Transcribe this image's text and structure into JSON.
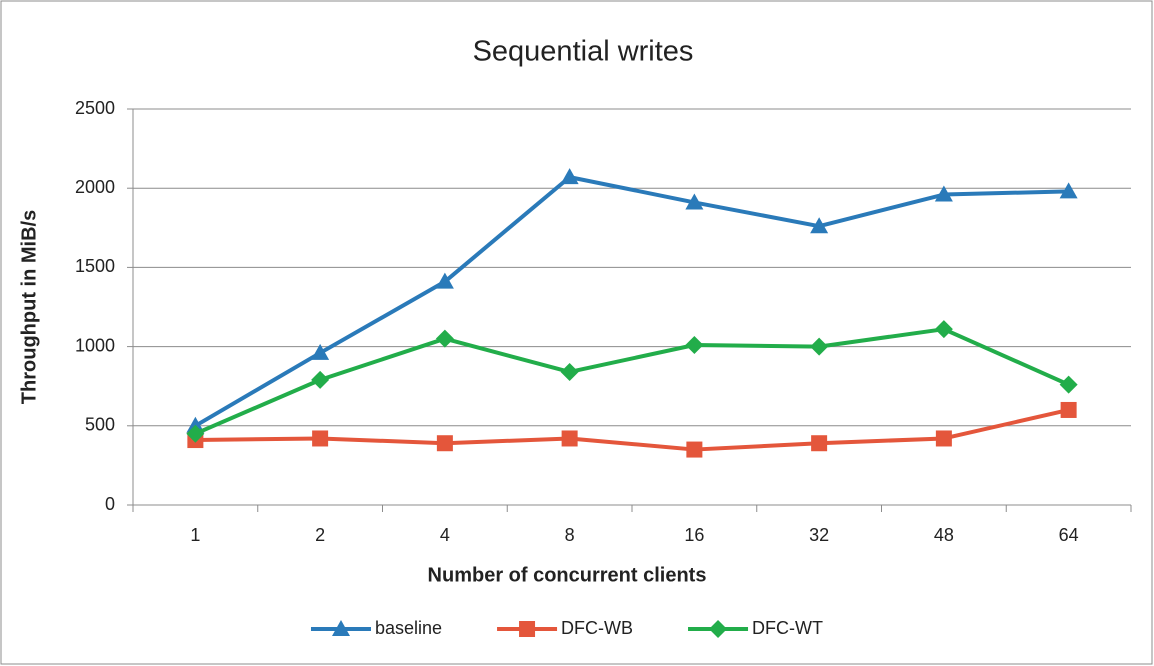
{
  "chart_data": {
    "type": "line",
    "title": "Sequential writes",
    "x_label": "Number of concurrent clients",
    "y_label": "Throughput in MiB/s",
    "categories": [
      "1",
      "2",
      "4",
      "8",
      "16",
      "32",
      "48",
      "64"
    ],
    "series": [
      {
        "name": "baseline",
        "color": "#2a7ab9",
        "marker": "triangle",
        "values": [
          500,
          960,
          1410,
          2070,
          1910,
          1760,
          1960,
          1980
        ]
      },
      {
        "name": "DFC-WB",
        "color": "#e4563b",
        "marker": "square",
        "values": [
          410,
          420,
          390,
          420,
          350,
          390,
          420,
          600
        ]
      },
      {
        "name": "DFC-WT",
        "color": "#22ad4a",
        "marker": "diamond",
        "values": [
          450,
          790,
          1050,
          840,
          1010,
          1000,
          1110,
          760
        ]
      }
    ],
    "ylim": [
      0,
      2500
    ],
    "yticks": [
      0,
      500,
      1000,
      1500,
      2000,
      2500
    ],
    "grid": true,
    "legend": "bottom"
  }
}
